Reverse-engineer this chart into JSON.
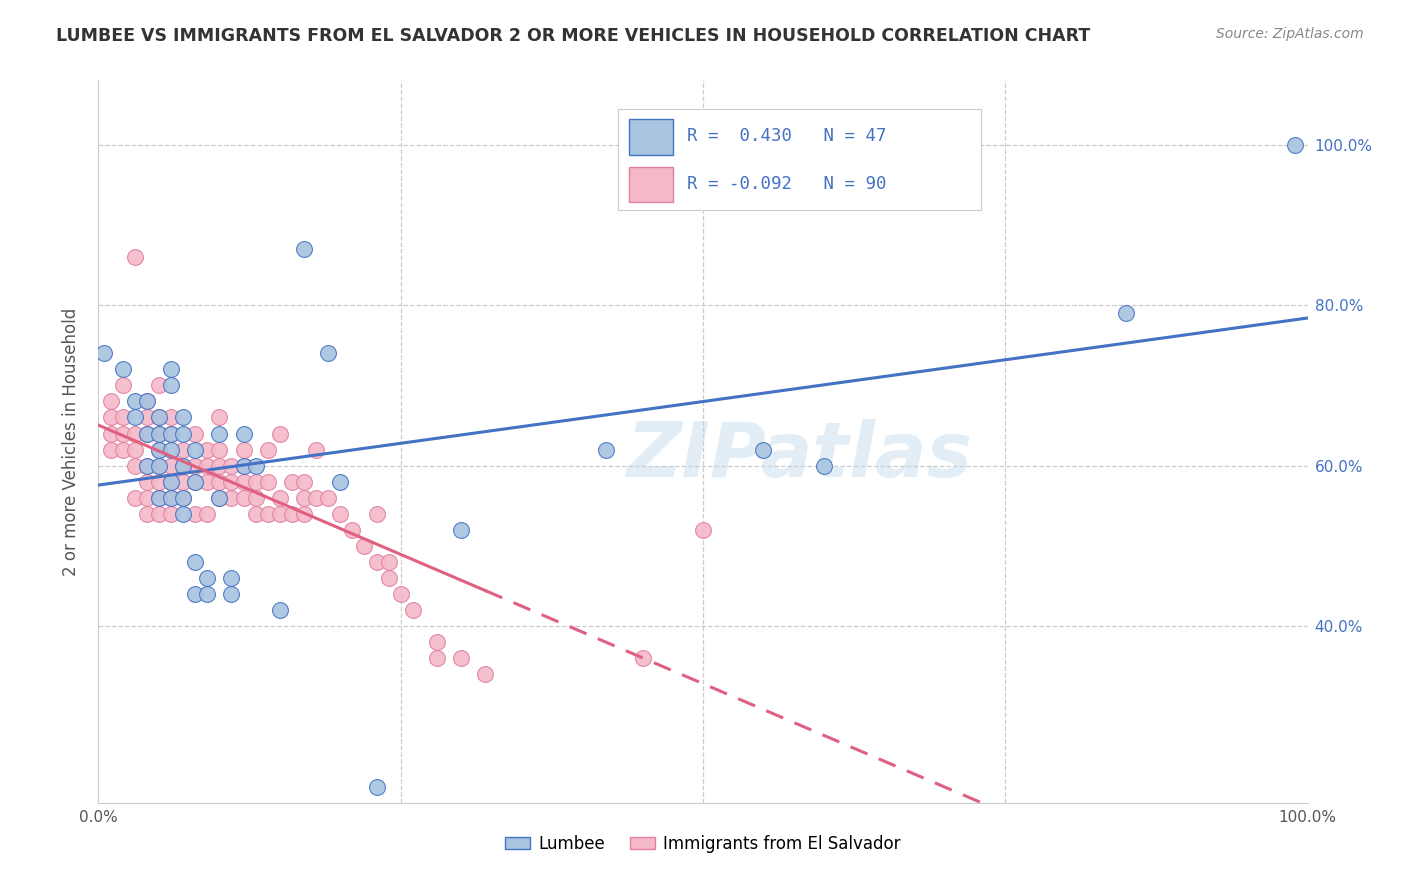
{
  "title": "LUMBEE VS IMMIGRANTS FROM EL SALVADOR 2 OR MORE VEHICLES IN HOUSEHOLD CORRELATION CHART",
  "source": "Source: ZipAtlas.com",
  "ylabel": "2 or more Vehicles in Household",
  "legend_label1": "Lumbee",
  "legend_label2": "Immigrants from El Salvador",
  "R1": 0.43,
  "N1": 47,
  "R2": -0.092,
  "N2": 90,
  "color1": "#a8c4e0",
  "color2": "#f4b8c8",
  "line_color1": "#4472c4",
  "line_color2": "#e06080",
  "line_color2_dark": "#d04070",
  "watermark": "ZIPatlas",
  "xlim": [
    0.0,
    1.0
  ],
  "ylim": [
    0.18,
    1.08
  ],
  "yticks": [
    0.4,
    0.6,
    0.8,
    1.0
  ],
  "ytick_labels": [
    "40.0%",
    "60.0%",
    "80.0%",
    "100.0%"
  ],
  "xticks": [
    0.0,
    0.25,
    0.5,
    0.75,
    1.0
  ],
  "xtick_labels": [
    "0.0%",
    "",
    "",
    "",
    "100.0%"
  ],
  "lumbee_x": [
    0.005,
    0.02,
    0.03,
    0.03,
    0.04,
    0.04,
    0.04,
    0.05,
    0.05,
    0.05,
    0.05,
    0.05,
    0.06,
    0.06,
    0.06,
    0.06,
    0.06,
    0.06,
    0.07,
    0.07,
    0.07,
    0.07,
    0.07,
    0.08,
    0.08,
    0.08,
    0.08,
    0.09,
    0.09,
    0.1,
    0.1,
    0.11,
    0.11,
    0.12,
    0.12,
    0.13,
    0.15,
    0.17,
    0.19,
    0.2,
    0.23,
    0.3,
    0.42,
    0.55,
    0.6,
    0.85,
    0.99
  ],
  "lumbee_y": [
    0.74,
    0.72,
    0.66,
    0.68,
    0.6,
    0.64,
    0.68,
    0.56,
    0.6,
    0.62,
    0.64,
    0.66,
    0.56,
    0.58,
    0.62,
    0.64,
    0.7,
    0.72,
    0.54,
    0.56,
    0.6,
    0.64,
    0.66,
    0.44,
    0.48,
    0.58,
    0.62,
    0.44,
    0.46,
    0.56,
    0.64,
    0.44,
    0.46,
    0.6,
    0.64,
    0.6,
    0.42,
    0.87,
    0.74,
    0.58,
    0.2,
    0.52,
    0.62,
    0.62,
    0.6,
    0.79,
    1.0
  ],
  "salvador_x": [
    0.01,
    0.01,
    0.01,
    0.01,
    0.02,
    0.02,
    0.02,
    0.02,
    0.03,
    0.03,
    0.03,
    0.03,
    0.03,
    0.04,
    0.04,
    0.04,
    0.04,
    0.04,
    0.04,
    0.04,
    0.05,
    0.05,
    0.05,
    0.05,
    0.05,
    0.05,
    0.05,
    0.05,
    0.06,
    0.06,
    0.06,
    0.06,
    0.06,
    0.06,
    0.07,
    0.07,
    0.07,
    0.07,
    0.08,
    0.08,
    0.08,
    0.08,
    0.09,
    0.09,
    0.09,
    0.09,
    0.1,
    0.1,
    0.1,
    0.1,
    0.1,
    0.11,
    0.11,
    0.11,
    0.12,
    0.12,
    0.12,
    0.12,
    0.13,
    0.13,
    0.13,
    0.14,
    0.14,
    0.14,
    0.15,
    0.15,
    0.15,
    0.16,
    0.16,
    0.17,
    0.17,
    0.17,
    0.18,
    0.18,
    0.19,
    0.2,
    0.21,
    0.22,
    0.23,
    0.23,
    0.24,
    0.24,
    0.25,
    0.26,
    0.28,
    0.28,
    0.3,
    0.32,
    0.45,
    0.5
  ],
  "salvador_y": [
    0.62,
    0.64,
    0.66,
    0.68,
    0.62,
    0.64,
    0.66,
    0.7,
    0.56,
    0.6,
    0.62,
    0.64,
    0.86,
    0.54,
    0.56,
    0.58,
    0.6,
    0.64,
    0.66,
    0.68,
    0.54,
    0.56,
    0.58,
    0.6,
    0.62,
    0.64,
    0.66,
    0.7,
    0.54,
    0.56,
    0.58,
    0.6,
    0.64,
    0.66,
    0.56,
    0.58,
    0.6,
    0.62,
    0.54,
    0.58,
    0.6,
    0.64,
    0.54,
    0.58,
    0.6,
    0.62,
    0.56,
    0.58,
    0.6,
    0.62,
    0.66,
    0.56,
    0.58,
    0.6,
    0.56,
    0.58,
    0.6,
    0.62,
    0.54,
    0.56,
    0.58,
    0.54,
    0.58,
    0.62,
    0.54,
    0.56,
    0.64,
    0.54,
    0.58,
    0.54,
    0.56,
    0.58,
    0.56,
    0.62,
    0.56,
    0.54,
    0.52,
    0.5,
    0.48,
    0.54,
    0.46,
    0.48,
    0.44,
    0.42,
    0.38,
    0.36,
    0.36,
    0.34,
    0.36,
    0.52
  ]
}
